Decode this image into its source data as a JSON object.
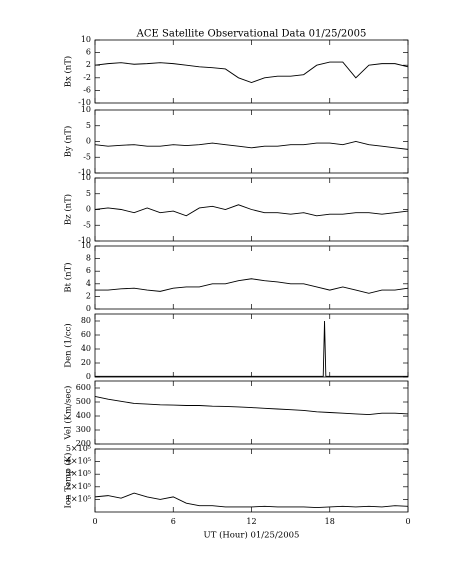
{
  "chart_data": [
    {
      "type": "line",
      "title": "ACE Satellite Observational Data   01/25/2005",
      "ylabel": "Bx (nT)",
      "x": [
        0,
        1,
        2,
        3,
        4,
        5,
        6,
        7,
        8,
        9,
        10,
        11,
        12,
        13,
        14,
        15,
        16,
        17,
        18,
        19,
        20,
        21,
        22,
        23,
        24
      ],
      "values": [
        2,
        2.5,
        2.8,
        2.3,
        2.5,
        2.8,
        2.5,
        2,
        1.5,
        1.2,
        0.8,
        -2,
        -3.5,
        -2,
        -1.5,
        -1.5,
        -1,
        2,
        3,
        3,
        -2,
        2,
        2.5,
        2.5,
        1.5
      ],
      "ylim": [
        -10,
        10
      ],
      "yticks": [
        -10,
        -6,
        -2,
        2,
        6,
        10
      ],
      "xlim": [
        0,
        24
      ],
      "color": "#000000"
    },
    {
      "type": "line",
      "ylabel": "By (nT)",
      "x": [
        0,
        1,
        2,
        3,
        4,
        5,
        6,
        7,
        8,
        9,
        10,
        11,
        12,
        13,
        14,
        15,
        16,
        17,
        18,
        19,
        20,
        21,
        22,
        23,
        24
      ],
      "values": [
        -1,
        -1.5,
        -1.2,
        -1,
        -1.5,
        -1.5,
        -1,
        -1.3,
        -1,
        -0.5,
        -1,
        -1.5,
        -2,
        -1.5,
        -1.5,
        -1,
        -1,
        -0.5,
        -0.5,
        -1,
        0,
        -1,
        -1.5,
        -2,
        -2.5
      ],
      "ylim": [
        -10,
        10
      ],
      "yticks": [
        -10,
        -5,
        0,
        5,
        10
      ],
      "xlim": [
        0,
        24
      ],
      "color": "#000000"
    },
    {
      "type": "line",
      "ylabel": "Bz (nT)",
      "x": [
        0,
        1,
        2,
        3,
        4,
        5,
        6,
        7,
        8,
        9,
        10,
        11,
        12,
        13,
        14,
        15,
        16,
        17,
        18,
        19,
        20,
        21,
        22,
        23,
        24
      ],
      "values": [
        0,
        0.5,
        0,
        -1,
        0.5,
        -1,
        -0.5,
        -2,
        0.5,
        1,
        0,
        1.5,
        0,
        -1,
        -1,
        -1.5,
        -1,
        -2,
        -1.5,
        -1.5,
        -1,
        -1,
        -1.5,
        -1,
        -0.5
      ],
      "ylim": [
        -10,
        10
      ],
      "yticks": [
        -10,
        -5,
        0,
        5,
        10
      ],
      "xlim": [
        0,
        24
      ],
      "color": "#000000"
    },
    {
      "type": "line",
      "ylabel": "Bt (nT)",
      "x": [
        0,
        1,
        2,
        3,
        4,
        5,
        6,
        7,
        8,
        9,
        10,
        11,
        12,
        13,
        14,
        15,
        16,
        17,
        18,
        19,
        20,
        21,
        22,
        23,
        24
      ],
      "values": [
        3,
        3,
        3.2,
        3.3,
        3,
        2.8,
        3.3,
        3.5,
        3.5,
        4,
        4,
        4.5,
        4.8,
        4.5,
        4.3,
        4,
        4,
        3.5,
        3,
        3.5,
        3,
        2.5,
        3,
        3,
        3.3
      ],
      "ylim": [
        0,
        10
      ],
      "yticks": [
        0,
        2,
        4,
        6,
        8,
        10
      ],
      "xlim": [
        0,
        24
      ],
      "color": "#000000"
    },
    {
      "type": "line",
      "ylabel": "Den (1/cc)",
      "x": [
        0,
        6,
        12,
        17.5,
        17.6,
        17.7,
        24
      ],
      "values": [
        1,
        1,
        1,
        1,
        80,
        1,
        1
      ],
      "ylim": [
        0,
        90
      ],
      "yticks": [
        0,
        20,
        40,
        60,
        80
      ],
      "xlim": [
        0,
        24
      ],
      "color": "#000000"
    },
    {
      "type": "line",
      "ylabel": "Vel (Km/sec)",
      "x": [
        0,
        1,
        2,
        3,
        4,
        5,
        6,
        7,
        8,
        9,
        10,
        11,
        12,
        13,
        14,
        15,
        16,
        17,
        18,
        19,
        20,
        21,
        22,
        23,
        24
      ],
      "values": [
        540,
        520,
        505,
        490,
        485,
        480,
        478,
        475,
        475,
        470,
        468,
        465,
        460,
        455,
        450,
        445,
        440,
        430,
        425,
        420,
        415,
        410,
        420,
        420,
        415
      ],
      "ylim": [
        200,
        650
      ],
      "yticks": [
        200,
        300,
        400,
        500,
        600
      ],
      "xlim": [
        0,
        24
      ],
      "color": "#000000"
    },
    {
      "type": "line",
      "ylabel": "Ion Temp (K)",
      "xlabel": "UT (Hour)  01/25/2005",
      "x": [
        0,
        1,
        2,
        3,
        4,
        5,
        6,
        7,
        8,
        9,
        10,
        11,
        12,
        13,
        14,
        15,
        16,
        17,
        18,
        19,
        20,
        21,
        22,
        23,
        24
      ],
      "values": [
        120000,
        130000,
        110000,
        150000,
        120000,
        100000,
        120000,
        70000,
        50000,
        50000,
        40000,
        40000,
        40000,
        45000,
        40000,
        40000,
        40000,
        35000,
        40000,
        45000,
        40000,
        45000,
        40000,
        50000,
        45000
      ],
      "ylim": [
        0,
        500000
      ],
      "yticks": [
        {
          "value": 100000,
          "label": "1×10⁵"
        },
        {
          "value": 200000,
          "label": "2×10⁵"
        },
        {
          "value": 300000,
          "label": "3×10⁵"
        },
        {
          "value": 400000,
          "label": "4×10⁵"
        },
        {
          "value": 500000,
          "label": "5×10⁵"
        }
      ],
      "xlim": [
        0,
        24
      ],
      "xticks": [
        0,
        6,
        12,
        18,
        {
          "value": 24,
          "label": "0"
        }
      ],
      "color": "#000000"
    }
  ]
}
